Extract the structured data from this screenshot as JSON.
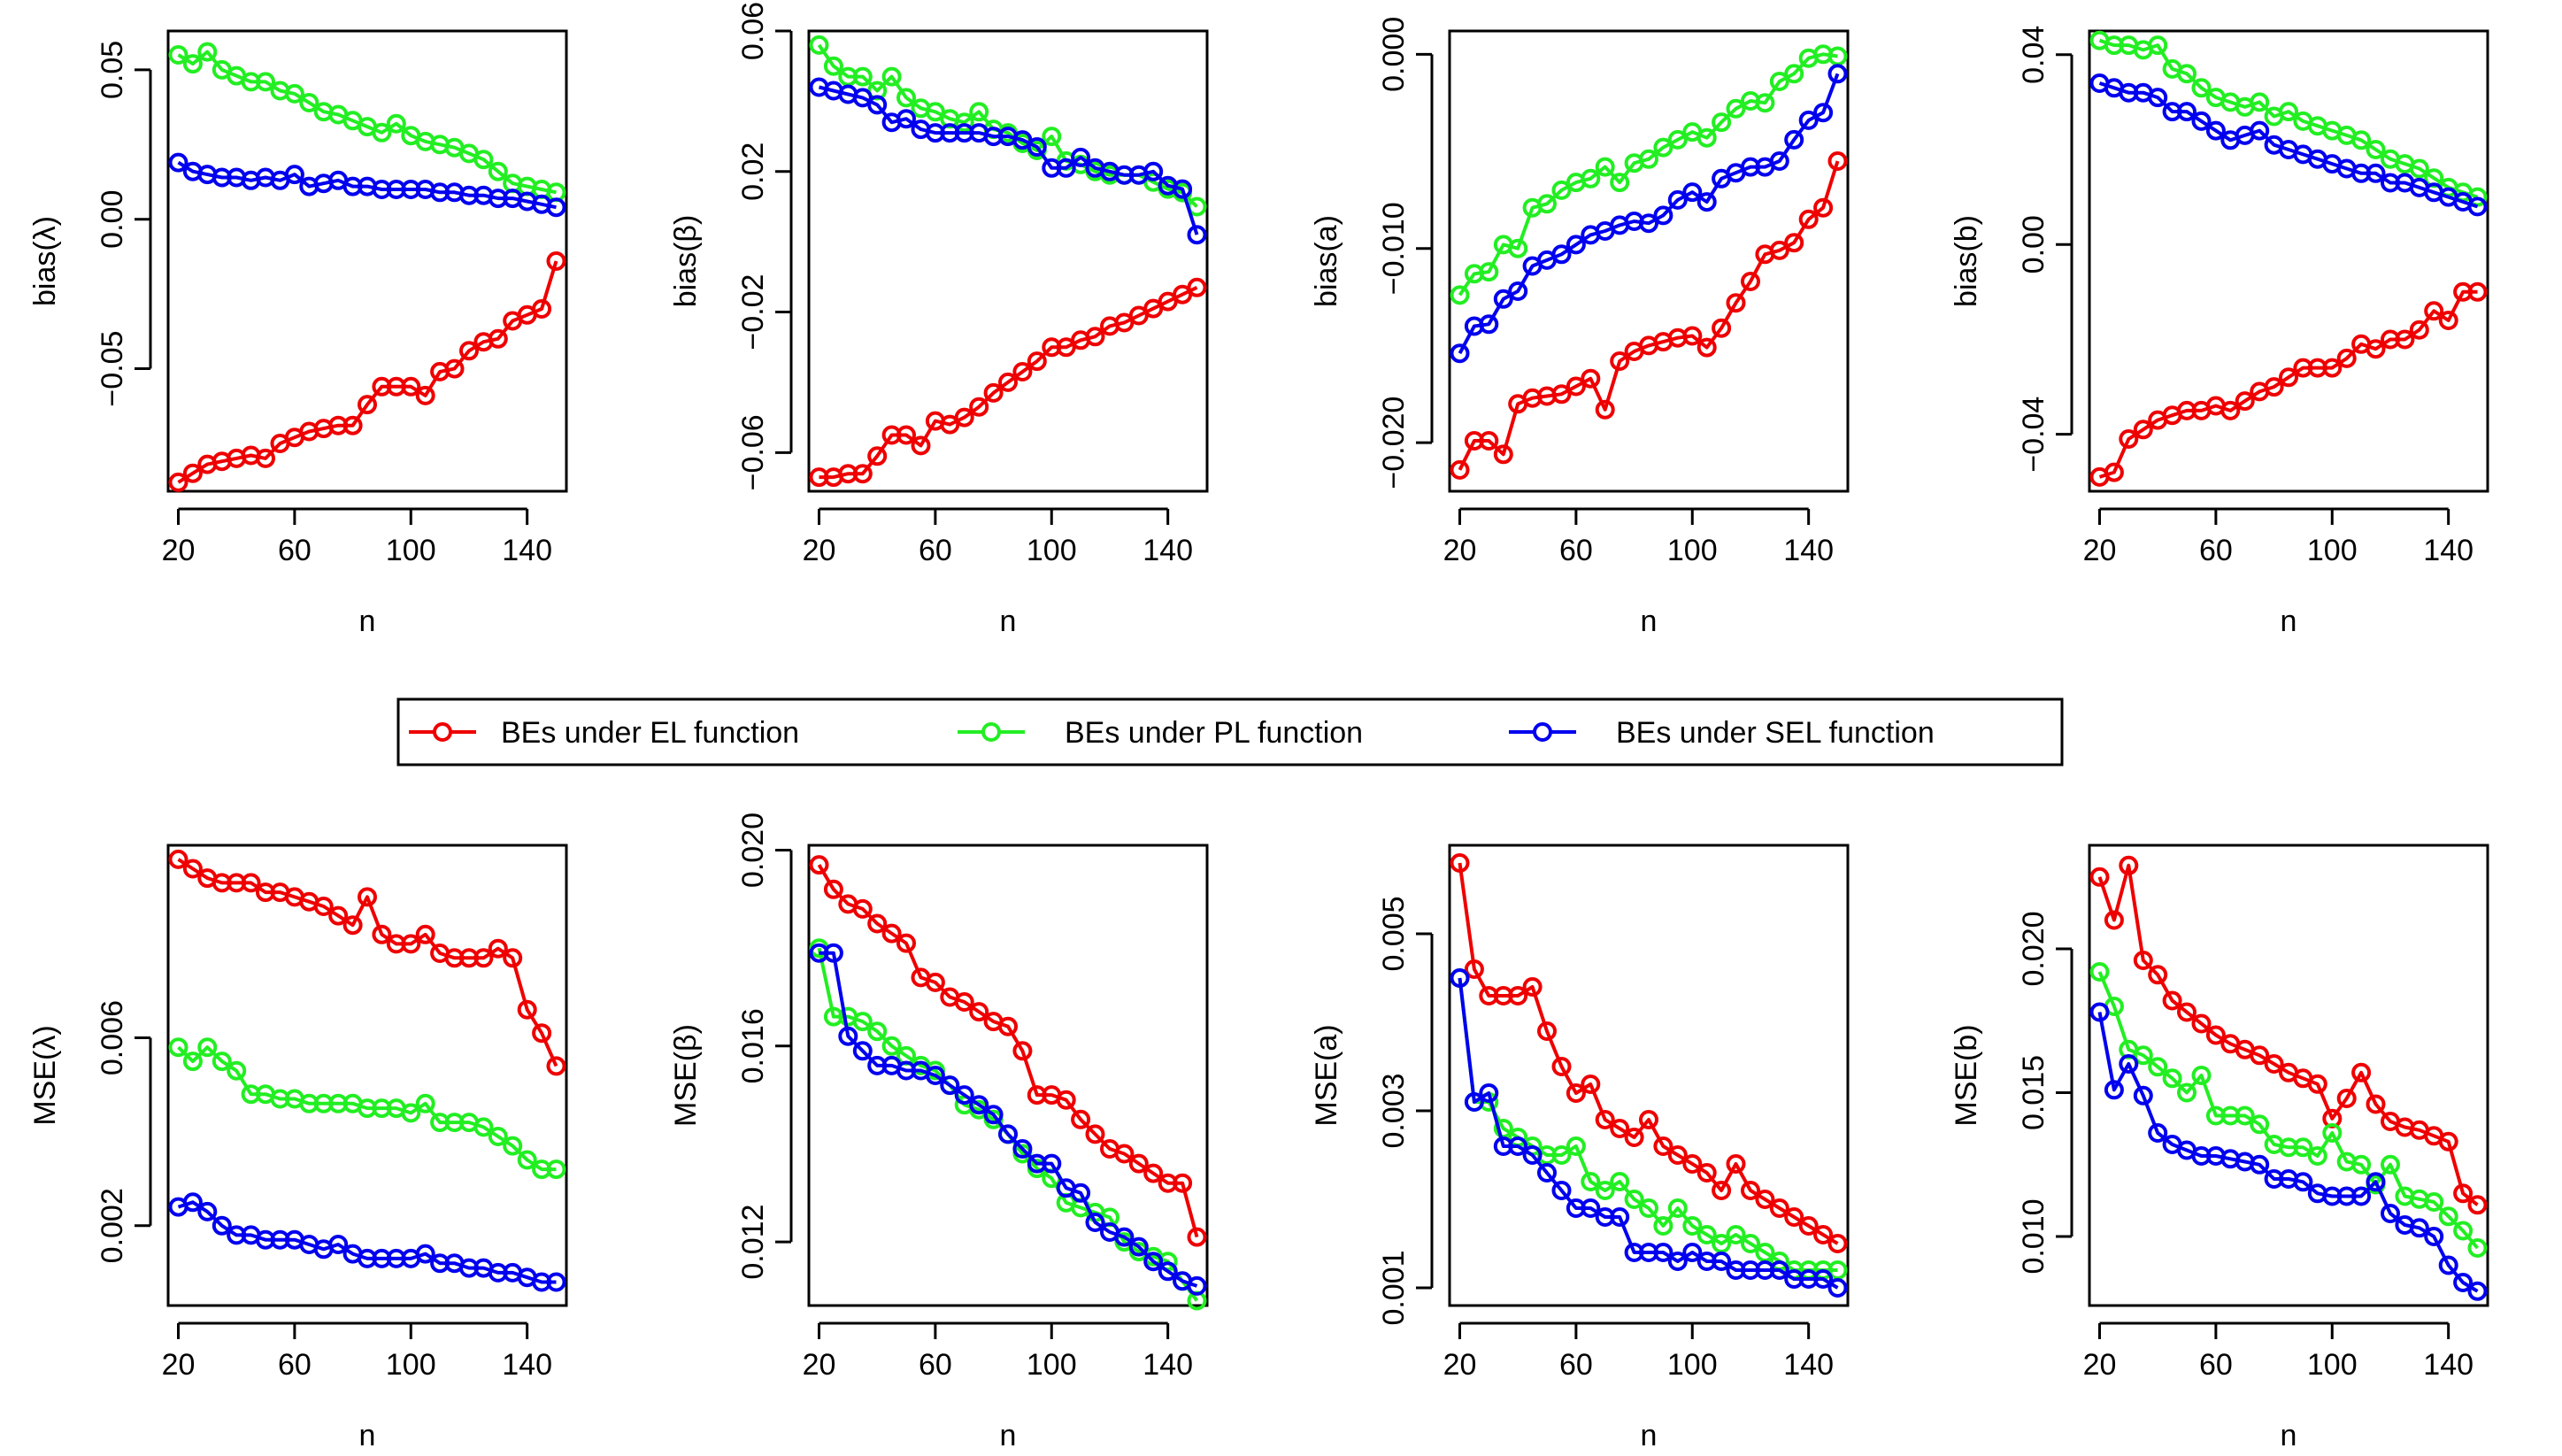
{
  "x": [
    20,
    25,
    30,
    35,
    40,
    45,
    50,
    55,
    60,
    65,
    70,
    75,
    80,
    85,
    90,
    95,
    100,
    105,
    110,
    115,
    120,
    125,
    130,
    135,
    140,
    145,
    150
  ],
  "legend": [
    {
      "label": "BEs under EL function",
      "color": "#ee0000"
    },
    {
      "label": "BEs under PL function",
      "color": "#22ee22"
    },
    {
      "label": "BEs under SEL function",
      "color": "#0000ee"
    }
  ],
  "chart_data": [
    {
      "type": "line",
      "ylabel": "bias(λ)",
      "xlabel": "n",
      "xlim": [
        16.5,
        153.5
      ],
      "ylim": [
        -0.091,
        0.063
      ],
      "xticks": [
        20,
        60,
        100,
        140
      ],
      "xtick_labels": [
        "20",
        "60",
        "100",
        "140"
      ],
      "yticks": [
        -0.05,
        0.0,
        0.05
      ],
      "ytick_labels": [
        "−0.05",
        "0.00",
        "0.05"
      ],
      "series": [
        {
          "name": "BEs under EL function",
          "values": [
            -0.088,
            -0.085,
            -0.082,
            -0.081,
            -0.08,
            -0.079,
            -0.08,
            -0.075,
            -0.073,
            -0.071,
            -0.07,
            -0.069,
            -0.069,
            -0.062,
            -0.056,
            -0.056,
            -0.056,
            -0.059,
            -0.051,
            -0.05,
            -0.044,
            -0.041,
            -0.04,
            -0.034,
            -0.032,
            -0.03,
            -0.014
          ]
        },
        {
          "name": "BEs under PL function",
          "values": [
            0.055,
            0.052,
            0.056,
            0.05,
            0.048,
            0.046,
            0.046,
            0.043,
            0.042,
            0.039,
            0.036,
            0.035,
            0.033,
            0.031,
            0.029,
            0.032,
            0.028,
            0.026,
            0.025,
            0.024,
            0.022,
            0.02,
            0.016,
            0.012,
            0.011,
            0.01,
            0.009
          ]
        },
        {
          "name": "BEs under SEL function",
          "values": [
            0.019,
            0.016,
            0.015,
            0.014,
            0.014,
            0.013,
            0.014,
            0.013,
            0.015,
            0.011,
            0.012,
            0.013,
            0.011,
            0.011,
            0.01,
            0.01,
            0.01,
            0.01,
            0.009,
            0.009,
            0.008,
            0.008,
            0.007,
            0.007,
            0.006,
            0.005,
            0.004
          ]
        }
      ]
    },
    {
      "type": "line",
      "ylabel": "bias(β)",
      "xlabel": "n",
      "xlim": [
        16.5,
        153.5
      ],
      "ylim": [
        -0.071,
        0.06
      ],
      "xticks": [
        20,
        60,
        100,
        140
      ],
      "xtick_labels": [
        "20",
        "60",
        "100",
        "140"
      ],
      "yticks": [
        -0.06,
        -0.02,
        0.02,
        0.06
      ],
      "ytick_labels": [
        "−0.06",
        "−0.02",
        "0.02",
        "0.06"
      ],
      "series": [
        {
          "name": "BEs under EL function",
          "values": [
            -0.067,
            -0.067,
            -0.066,
            -0.066,
            -0.061,
            -0.055,
            -0.055,
            -0.058,
            -0.051,
            -0.052,
            -0.05,
            -0.047,
            -0.043,
            -0.04,
            -0.037,
            -0.034,
            -0.03,
            -0.03,
            -0.028,
            -0.027,
            -0.024,
            -0.023,
            -0.021,
            -0.019,
            -0.017,
            -0.015,
            -0.013
          ]
        },
        {
          "name": "BEs under PL function",
          "values": [
            0.056,
            0.05,
            0.047,
            0.047,
            0.043,
            0.047,
            0.041,
            0.038,
            0.037,
            0.035,
            0.034,
            0.037,
            0.032,
            0.031,
            0.028,
            0.026,
            0.03,
            0.023,
            0.022,
            0.02,
            0.019,
            0.019,
            0.019,
            0.017,
            0.015,
            0.014,
            0.01
          ]
        },
        {
          "name": "BEs under SEL function",
          "values": [
            0.044,
            0.043,
            0.042,
            0.041,
            0.039,
            0.034,
            0.035,
            0.032,
            0.031,
            0.031,
            0.031,
            0.031,
            0.03,
            0.03,
            0.029,
            0.027,
            0.021,
            0.021,
            0.024,
            0.021,
            0.02,
            0.019,
            0.019,
            0.02,
            0.016,
            0.015,
            0.002
          ]
        }
      ]
    },
    {
      "type": "line",
      "ylabel": "bias(a)",
      "xlabel": "n",
      "xlim": [
        16.5,
        153.5
      ],
      "ylim": [
        -0.0225,
        0.0012
      ],
      "xticks": [
        20,
        60,
        100,
        140
      ],
      "xtick_labels": [
        "20",
        "60",
        "100",
        "140"
      ],
      "yticks": [
        -0.02,
        -0.01,
        0.0
      ],
      "ytick_labels": [
        "−0.020",
        "−0.010",
        "0.000"
      ],
      "series": [
        {
          "name": "BEs under EL function",
          "values": [
            -0.0214,
            -0.0199,
            -0.0199,
            -0.0206,
            -0.018,
            -0.0177,
            -0.0176,
            -0.0175,
            -0.0171,
            -0.0167,
            -0.0183,
            -0.0158,
            -0.0153,
            -0.015,
            -0.0148,
            -0.0146,
            -0.0145,
            -0.0151,
            -0.0141,
            -0.0128,
            -0.0117,
            -0.0103,
            -0.0101,
            -0.0097,
            -0.0085,
            -0.0079,
            -0.0055
          ]
        },
        {
          "name": "BEs under PL function",
          "values": [
            -0.0124,
            -0.0113,
            -0.0112,
            -0.0098,
            -0.01,
            -0.0079,
            -0.0077,
            -0.007,
            -0.0066,
            -0.0064,
            -0.0058,
            -0.0066,
            -0.0056,
            -0.0054,
            -0.0048,
            -0.0044,
            -0.004,
            -0.0043,
            -0.0035,
            -0.0028,
            -0.0024,
            -0.0025,
            -0.0014,
            -0.001,
            -0.0002,
            0.0,
            -0.0001
          ]
        },
        {
          "name": "BEs under SEL function",
          "values": [
            -0.0154,
            -0.014,
            -0.0139,
            -0.0126,
            -0.0122,
            -0.0109,
            -0.0106,
            -0.0103,
            -0.0098,
            -0.0093,
            -0.0091,
            -0.0088,
            -0.0086,
            -0.0087,
            -0.0083,
            -0.0075,
            -0.0071,
            -0.0076,
            -0.0064,
            -0.0061,
            -0.0058,
            -0.0058,
            -0.0055,
            -0.0044,
            -0.0034,
            -0.003,
            -0.001
          ]
        }
      ]
    },
    {
      "type": "line",
      "ylabel": "bias(b)",
      "xlabel": "n",
      "xlim": [
        16.5,
        153.5
      ],
      "ylim": [
        -0.052,
        0.045
      ],
      "xticks": [
        20,
        60,
        100,
        140
      ],
      "xtick_labels": [
        "20",
        "60",
        "100",
        "140"
      ],
      "yticks": [
        -0.04,
        0.0,
        0.04
      ],
      "ytick_labels": [
        "−0.04",
        "0.00",
        "0.04"
      ],
      "series": [
        {
          "name": "BEs under EL function",
          "values": [
            -0.049,
            -0.048,
            -0.041,
            -0.039,
            -0.037,
            -0.036,
            -0.035,
            -0.035,
            -0.034,
            -0.035,
            -0.033,
            -0.031,
            -0.03,
            -0.028,
            -0.026,
            -0.026,
            -0.026,
            -0.024,
            -0.021,
            -0.022,
            -0.02,
            -0.02,
            -0.018,
            -0.014,
            -0.016,
            -0.01,
            -0.01
          ]
        },
        {
          "name": "BEs under PL function",
          "values": [
            0.043,
            0.042,
            0.042,
            0.041,
            0.042,
            0.037,
            0.036,
            0.033,
            0.031,
            0.03,
            0.029,
            0.03,
            0.027,
            0.028,
            0.026,
            0.025,
            0.024,
            0.023,
            0.022,
            0.02,
            0.018,
            0.017,
            0.016,
            0.014,
            0.012,
            0.011,
            0.01
          ]
        },
        {
          "name": "BEs under SEL function",
          "values": [
            0.034,
            0.033,
            0.032,
            0.032,
            0.031,
            0.028,
            0.028,
            0.026,
            0.024,
            0.022,
            0.023,
            0.024,
            0.021,
            0.02,
            0.019,
            0.018,
            0.017,
            0.016,
            0.015,
            0.015,
            0.013,
            0.013,
            0.012,
            0.011,
            0.01,
            0.009,
            0.008
          ]
        }
      ]
    },
    {
      "type": "line",
      "ylabel": "MSE(λ)",
      "xlabel": "n",
      "xlim": [
        16.5,
        153.5
      ],
      "ylim": [
        0.0003,
        0.0101
      ],
      "xticks": [
        20,
        60,
        100,
        140
      ],
      "xtick_labels": [
        "20",
        "60",
        "100",
        "140"
      ],
      "yticks": [
        0.002,
        0.006
      ],
      "ytick_labels": [
        "0.002",
        "0.006"
      ],
      "series": [
        {
          "name": "BEs under EL function",
          "values": [
            0.0098,
            0.0096,
            0.0094,
            0.0093,
            0.0093,
            0.0093,
            0.0091,
            0.0091,
            0.009,
            0.0089,
            0.0088,
            0.0086,
            0.0084,
            0.009,
            0.0082,
            0.008,
            0.008,
            0.0082,
            0.0078,
            0.0077,
            0.0077,
            0.0077,
            0.0079,
            0.0077,
            0.0066,
            0.0061,
            0.0054
          ]
        },
        {
          "name": "BEs under PL function",
          "values": [
            0.0058,
            0.0055,
            0.0058,
            0.0055,
            0.0053,
            0.0048,
            0.0048,
            0.0047,
            0.0047,
            0.0046,
            0.0046,
            0.0046,
            0.0046,
            0.0045,
            0.0045,
            0.0045,
            0.0044,
            0.0046,
            0.0042,
            0.0042,
            0.0042,
            0.0041,
            0.0039,
            0.0037,
            0.0034,
            0.0032,
            0.0032
          ]
        },
        {
          "name": "BEs under SEL function",
          "values": [
            0.0024,
            0.0025,
            0.0023,
            0.002,
            0.0018,
            0.0018,
            0.0017,
            0.0017,
            0.0017,
            0.0016,
            0.0015,
            0.0016,
            0.0014,
            0.0013,
            0.0013,
            0.0013,
            0.0013,
            0.0014,
            0.0012,
            0.0012,
            0.0011,
            0.0011,
            0.001,
            0.001,
            0.0009,
            0.0008,
            0.0008
          ]
        }
      ]
    },
    {
      "type": "line",
      "ylabel": "MSE(β)",
      "xlabel": "n",
      "xlim": [
        16.5,
        153.5
      ],
      "ylim": [
        0.0107,
        0.0201
      ],
      "xticks": [
        20,
        60,
        100,
        140
      ],
      "xtick_labels": [
        "20",
        "60",
        "100",
        "140"
      ],
      "yticks": [
        0.012,
        0.016,
        0.02
      ],
      "ytick_labels": [
        "0.012",
        "0.016",
        "0.020"
      ],
      "series": [
        {
          "name": "BEs under EL function",
          "values": [
            0.0197,
            0.0192,
            0.0189,
            0.0188,
            0.0185,
            0.0183,
            0.0181,
            0.0174,
            0.0173,
            0.017,
            0.0169,
            0.0167,
            0.0165,
            0.0164,
            0.0159,
            0.015,
            0.015,
            0.0149,
            0.0145,
            0.0142,
            0.0139,
            0.0138,
            0.0136,
            0.0134,
            0.0132,
            0.0132,
            0.0121
          ]
        },
        {
          "name": "BEs under PL function",
          "values": [
            0.018,
            0.0166,
            0.0166,
            0.0165,
            0.0163,
            0.016,
            0.0158,
            0.0156,
            0.0155,
            0.0152,
            0.0148,
            0.0147,
            0.0145,
            0.0142,
            0.0138,
            0.0135,
            0.0133,
            0.0128,
            0.0127,
            0.0126,
            0.0125,
            0.012,
            0.0118,
            0.0117,
            0.0116,
            0.0112,
            0.0108
          ]
        },
        {
          "name": "BEs under SEL function",
          "values": [
            0.0179,
            0.0179,
            0.0162,
            0.0159,
            0.0156,
            0.0156,
            0.0155,
            0.0155,
            0.0154,
            0.0152,
            0.015,
            0.0148,
            0.0146,
            0.0142,
            0.0139,
            0.0136,
            0.0136,
            0.0131,
            0.013,
            0.0124,
            0.0122,
            0.0121,
            0.0119,
            0.0116,
            0.0114,
            0.0112,
            0.0111
          ]
        }
      ]
    },
    {
      "type": "line",
      "ylabel": "MSE(a)",
      "xlabel": "n",
      "xlim": [
        16.5,
        153.5
      ],
      "ylim": [
        0.0008,
        0.006
      ],
      "xticks": [
        20,
        60,
        100,
        140
      ],
      "xtick_labels": [
        "20",
        "60",
        "100",
        "140"
      ],
      "yticks": [
        0.001,
        0.003,
        0.005
      ],
      "ytick_labels": [
        "0.001",
        "0.003",
        "0.005"
      ],
      "series": [
        {
          "name": "BEs under EL function",
          "values": [
            0.0058,
            0.0046,
            0.0043,
            0.0043,
            0.0043,
            0.0044,
            0.0039,
            0.0035,
            0.0032,
            0.0033,
            0.0029,
            0.0028,
            0.0027,
            0.0029,
            0.0026,
            0.0025,
            0.0024,
            0.0023,
            0.0021,
            0.0024,
            0.0021,
            0.002,
            0.0019,
            0.0018,
            0.0017,
            0.0016,
            0.0015
          ]
        },
        {
          "name": "BEs under PL function",
          "values": [
            0.0045,
            0.0031,
            0.0031,
            0.0028,
            0.0027,
            0.0026,
            0.0025,
            0.0025,
            0.0026,
            0.0022,
            0.0021,
            0.0022,
            0.002,
            0.0019,
            0.0017,
            0.0019,
            0.0017,
            0.0016,
            0.0015,
            0.0016,
            0.0015,
            0.0014,
            0.0013,
            0.0012,
            0.0012,
            0.0012,
            0.0012
          ]
        },
        {
          "name": "BEs under SEL function",
          "values": [
            0.0045,
            0.0031,
            0.0032,
            0.0026,
            0.0026,
            0.0025,
            0.0023,
            0.0021,
            0.0019,
            0.0019,
            0.0018,
            0.0018,
            0.0014,
            0.0014,
            0.0014,
            0.0013,
            0.0014,
            0.0013,
            0.0013,
            0.0012,
            0.0012,
            0.0012,
            0.0012,
            0.0011,
            0.0011,
            0.0011,
            0.001
          ]
        }
      ]
    },
    {
      "type": "line",
      "ylabel": "MSE(b)",
      "xlabel": "n",
      "xlim": [
        16.5,
        153.5
      ],
      "ylim": [
        0.0076,
        0.0236
      ],
      "xticks": [
        20,
        60,
        100,
        140
      ],
      "xtick_labels": [
        "20",
        "60",
        "100",
        "140"
      ],
      "yticks": [
        0.01,
        0.015,
        0.02
      ],
      "ytick_labels": [
        "0.010",
        "0.015",
        "0.020"
      ],
      "series": [
        {
          "name": "BEs under EL function",
          "values": [
            0.0225,
            0.021,
            0.0229,
            0.0196,
            0.0191,
            0.0182,
            0.0178,
            0.0174,
            0.017,
            0.0167,
            0.0165,
            0.0163,
            0.016,
            0.0157,
            0.0155,
            0.0153,
            0.0141,
            0.0148,
            0.0157,
            0.0146,
            0.014,
            0.0138,
            0.0137,
            0.0135,
            0.0133,
            0.0115,
            0.0111
          ]
        },
        {
          "name": "BEs under PL function",
          "values": [
            0.0192,
            0.018,
            0.0165,
            0.0163,
            0.0159,
            0.0155,
            0.015,
            0.0156,
            0.0142,
            0.0142,
            0.0142,
            0.0139,
            0.0132,
            0.0131,
            0.0131,
            0.0128,
            0.0136,
            0.0126,
            0.0125,
            0.0118,
            0.0125,
            0.0114,
            0.0113,
            0.0112,
            0.0107,
            0.0102,
            0.0096
          ]
        },
        {
          "name": "BEs under SEL function",
          "values": [
            0.0178,
            0.0151,
            0.016,
            0.0149,
            0.0136,
            0.0132,
            0.013,
            0.0128,
            0.0128,
            0.0127,
            0.0126,
            0.0125,
            0.012,
            0.012,
            0.0119,
            0.0115,
            0.0114,
            0.0114,
            0.0114,
            0.0119,
            0.0108,
            0.0104,
            0.0103,
            0.01,
            0.009,
            0.0084,
            0.0081
          ]
        }
      ]
    }
  ]
}
